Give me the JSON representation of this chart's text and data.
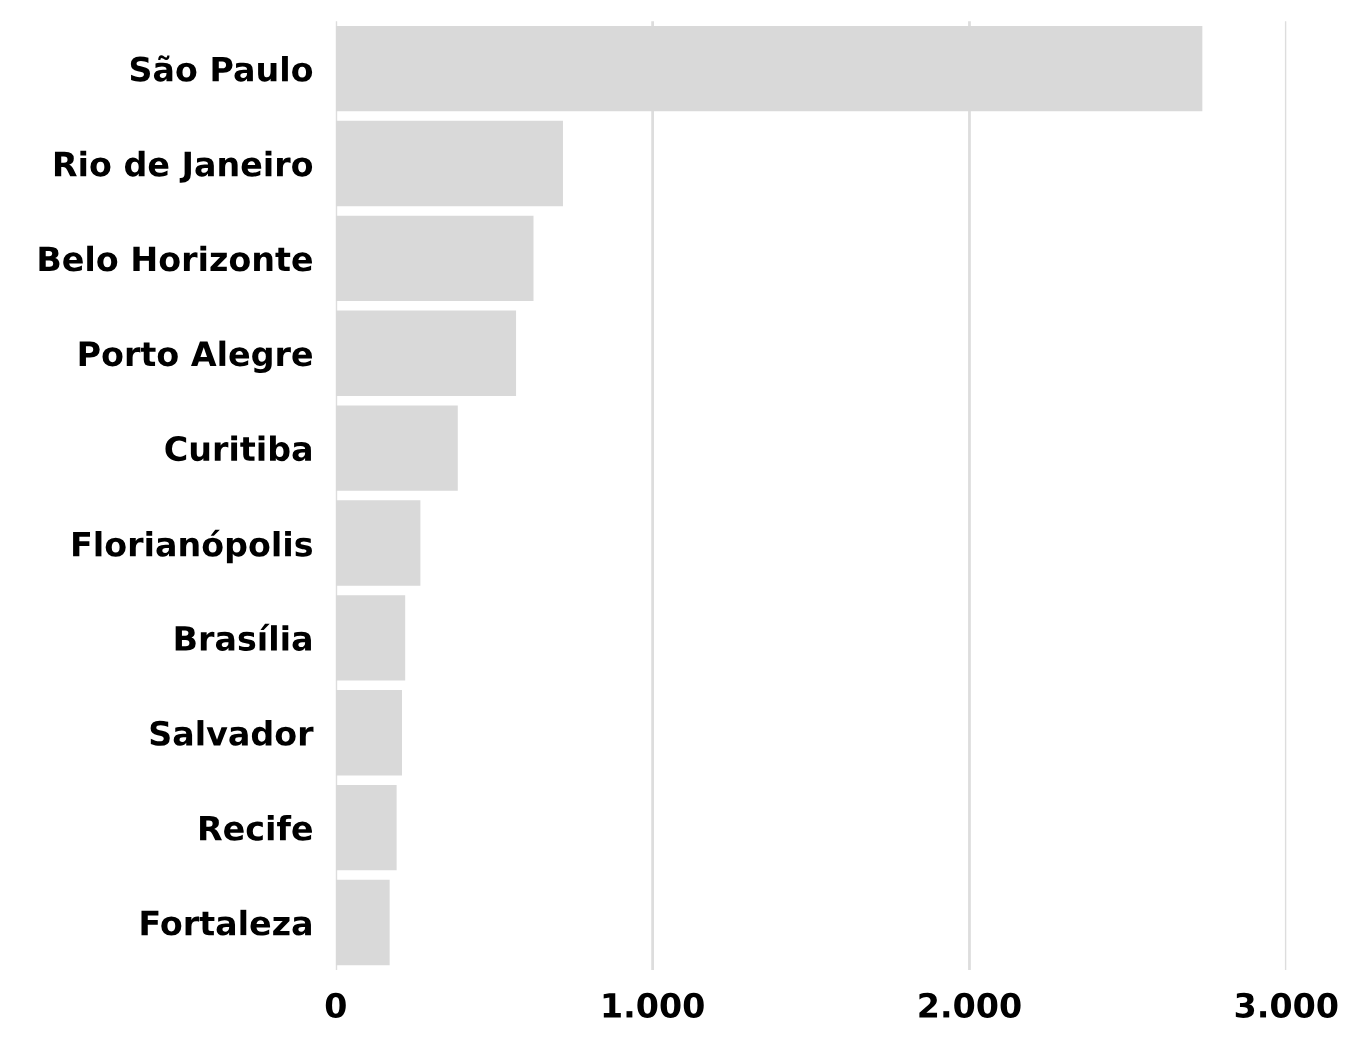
{
  "chart_data": {
    "type": "bar",
    "orientation": "horizontal",
    "categories": [
      "São Paulo",
      "Rio de Janeiro",
      "Belo Horizonte",
      "Porto Alegre",
      "Curitiba",
      "Florianópolis",
      "Brasília",
      "Salvador",
      "Recife",
      "Fortaleza"
    ],
    "values": [
      2735,
      717,
      624,
      569,
      385,
      267,
      219,
      209,
      192,
      170
    ],
    "color": "#d9d9d9",
    "xlim": [
      0,
      3000
    ],
    "xticks": [
      0,
      {
        "value": 1000,
        "label": "1.000"
      },
      {
        "value": 2000,
        "label": "2.000"
      },
      {
        "value": 3000,
        "label": "3.000"
      }
    ],
    "grid": "x"
  }
}
